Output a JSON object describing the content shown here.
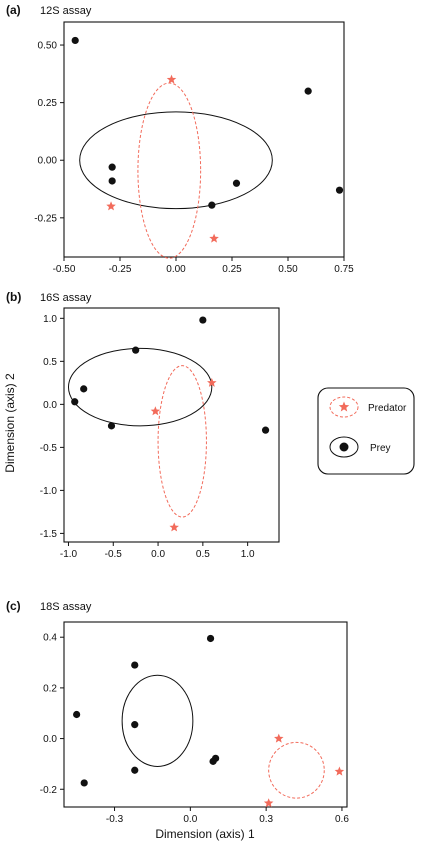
{
  "figure": {
    "xlabel": "Dimension (axis) 1",
    "ylabel": "Dimension (axis) 2"
  },
  "legend": {
    "items": [
      {
        "label": "Predator",
        "marker": "star",
        "color": "#f26b5b"
      },
      {
        "label": "Prey",
        "marker": "circle",
        "color": "#111111"
      }
    ]
  },
  "colors": {
    "predator": "#f26b5b",
    "prey": "#111111"
  },
  "chart_data": [
    {
      "type": "scatter",
      "panel": "(a)",
      "title": "12S assay",
      "xlim": [
        -0.5,
        0.75
      ],
      "ylim": [
        -0.42,
        0.6
      ],
      "xticks": [
        "-0.50",
        "-0.25",
        "0.00",
        "0.25",
        "0.50",
        "0.75"
      ],
      "yticks": [
        "-0.25",
        "0.00",
        "0.25",
        "0.50"
      ],
      "xtick_values": [
        -0.5,
        -0.25,
        0,
        0.25,
        0.5,
        0.75
      ],
      "ytick_values": [
        -0.25,
        0,
        0.25,
        0.5
      ],
      "series": [
        {
          "name": "Prey",
          "marker": "circle",
          "points": [
            [
              -0.45,
              0.52
            ],
            [
              -0.285,
              -0.03
            ],
            [
              -0.285,
              -0.09
            ],
            [
              0.16,
              -0.195
            ],
            [
              0.27,
              -0.1
            ],
            [
              0.59,
              0.3
            ],
            [
              0.73,
              -0.13
            ]
          ],
          "ellipse": {
            "cx": 0.0,
            "cy": 0.0,
            "rx": 0.43,
            "ry": 0.21
          }
        },
        {
          "name": "Predator",
          "marker": "star",
          "points": [
            [
              -0.02,
              0.35
            ],
            [
              -0.29,
              -0.2
            ],
            [
              0.17,
              -0.34
            ]
          ],
          "ellipse": {
            "cx": -0.03,
            "cy": -0.045,
            "rx": 0.14,
            "ry": 0.38
          }
        }
      ]
    },
    {
      "type": "scatter",
      "panel": "(b)",
      "title": "16S assay",
      "xlim": [
        -1.05,
        1.35
      ],
      "ylim": [
        -1.6,
        1.12
      ],
      "xticks": [
        "-1.0",
        "-0.5",
        "0.0",
        "0.5",
        "1.0"
      ],
      "yticks": [
        "-1.5",
        "-1.0",
        "-0.5",
        "0.0",
        "0.5",
        "1.0"
      ],
      "xtick_values": [
        -1.0,
        -0.5,
        0,
        0.5,
        1.0
      ],
      "ytick_values": [
        -1.5,
        -1.0,
        -0.5,
        0,
        0.5,
        1.0
      ],
      "series": [
        {
          "name": "Prey",
          "marker": "circle",
          "points": [
            [
              0.5,
              0.98
            ],
            [
              -0.25,
              0.63
            ],
            [
              -0.83,
              0.18
            ],
            [
              -0.93,
              0.03
            ],
            [
              -0.52,
              -0.25
            ],
            [
              1.2,
              -0.3
            ]
          ],
          "ellipse": {
            "cx": -0.2,
            "cy": 0.2,
            "rx": 0.8,
            "ry": 0.45
          }
        },
        {
          "name": "Predator",
          "marker": "star",
          "points": [
            [
              0.6,
              0.25
            ],
            [
              -0.03,
              -0.08
            ],
            [
              0.18,
              -1.43
            ]
          ],
          "ellipse": {
            "cx": 0.27,
            "cy": -0.43,
            "rx": 0.27,
            "ry": 0.88
          }
        }
      ]
    },
    {
      "type": "scatter",
      "panel": "(c)",
      "title": "18S assay",
      "xlim": [
        -0.5,
        0.62
      ],
      "ylim": [
        -0.27,
        0.46
      ],
      "xticks": [
        "-0.3",
        "0.0",
        "0.3",
        "0.6"
      ],
      "yticks": [
        "-0.2",
        "0.0",
        "0.2",
        "0.4"
      ],
      "xtick_values": [
        -0.3,
        0,
        0.3,
        0.6
      ],
      "ytick_values": [
        -0.2,
        0,
        0.2,
        0.4
      ],
      "series": [
        {
          "name": "Prey",
          "marker": "circle",
          "points": [
            [
              0.08,
              0.395
            ],
            [
              -0.22,
              0.29
            ],
            [
              -0.45,
              0.095
            ],
            [
              -0.22,
              0.055
            ],
            [
              -0.42,
              -0.175
            ],
            [
              -0.22,
              -0.125
            ],
            [
              0.1,
              -0.078
            ],
            [
              0.09,
              -0.09
            ]
          ],
          "ellipse": {
            "cx": -0.13,
            "cy": 0.07,
            "rx": 0.14,
            "ry": 0.18
          }
        },
        {
          "name": "Predator",
          "marker": "star",
          "points": [
            [
              0.35,
              0.0
            ],
            [
              0.59,
              -0.13
            ],
            [
              0.31,
              -0.255
            ]
          ],
          "ellipse": {
            "cx": 0.42,
            "cy": -0.125,
            "rx": 0.11,
            "ry": 0.11
          }
        }
      ]
    }
  ]
}
